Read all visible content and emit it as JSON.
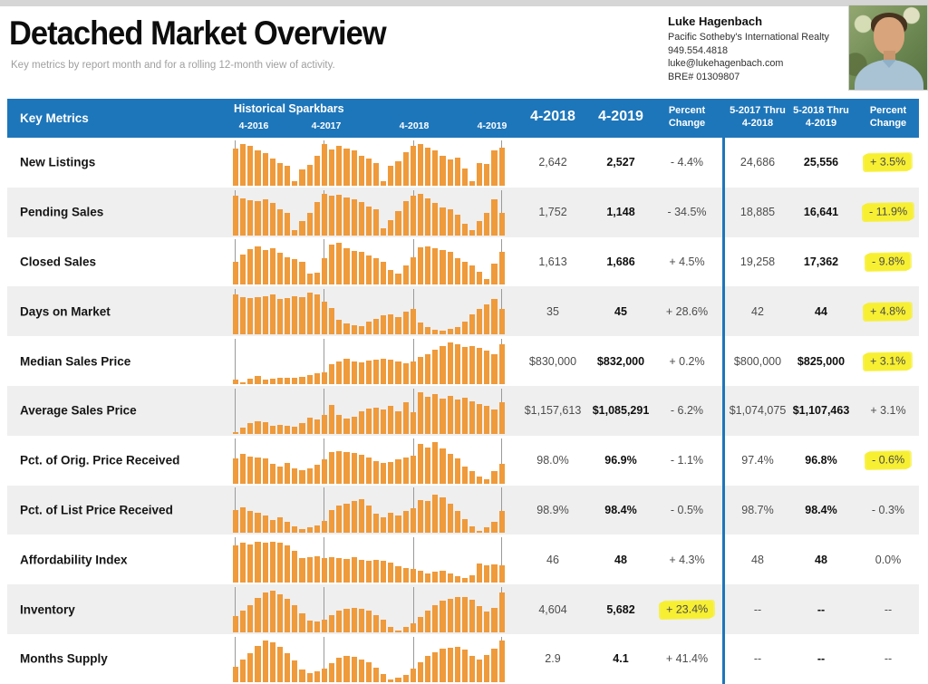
{
  "page": {
    "title": "Detached Market Overview",
    "subtitle": "Key metrics by report month and for a rolling 12-month view of activity."
  },
  "agent": {
    "name": "Luke Hagenbach",
    "company": "Pacific Sotheby's International Realty",
    "phone": "949.554.4818",
    "email": "luke@lukehagenbach.com",
    "license": "BRE# 01309807"
  },
  "colors": {
    "header_blue": "#1E76BA",
    "bar_orange": "#EF9A3B",
    "highlight_yellow": "#F7EF32",
    "row_stripe_gray": "#EFEFEF"
  },
  "table": {
    "header": {
      "key_metrics": "Key Metrics",
      "sparkbars_title": "Historical Sparkbars",
      "spark_years": [
        "4-2016",
        "4-2017",
        "4-2018",
        "4-2019"
      ],
      "month_prev": "4-2018",
      "month_curr": "4-2019",
      "pct_line1": "Percent",
      "pct_line2": "Change",
      "roll_prev_line1": "5-2017 Thru",
      "roll_prev_line2": "4-2018",
      "roll_curr_line1": "5-2018 Thru",
      "roll_curr_line2": "4-2019",
      "roll_pct_line1": "Percent",
      "roll_pct_line2": "Change"
    },
    "rows": [
      {
        "label": "New Listings",
        "m_prev": "2,642",
        "m_curr": "2,527",
        "m_pct": "- 4.4%",
        "m_pct_highlight": false,
        "r_prev": "24,686",
        "r_curr": "25,556",
        "r_pct": "+ 3.5%",
        "r_pct_highlight": true
      },
      {
        "label": "Pending Sales",
        "m_prev": "1,752",
        "m_curr": "1,148",
        "m_pct": "- 34.5%",
        "m_pct_highlight": false,
        "r_prev": "18,885",
        "r_curr": "16,641",
        "r_pct": "- 11.9%",
        "r_pct_highlight": true
      },
      {
        "label": "Closed Sales",
        "m_prev": "1,613",
        "m_curr": "1,686",
        "m_pct": "+ 4.5%",
        "m_pct_highlight": false,
        "r_prev": "19,258",
        "r_curr": "17,362",
        "r_pct": "- 9.8%",
        "r_pct_highlight": true
      },
      {
        "label": "Days on Market",
        "m_prev": "35",
        "m_curr": "45",
        "m_pct": "+ 28.6%",
        "m_pct_highlight": false,
        "r_prev": "42",
        "r_curr": "44",
        "r_pct": "+ 4.8%",
        "r_pct_highlight": true
      },
      {
        "label": "Median Sales Price",
        "m_prev": "$830,000",
        "m_curr": "$832,000",
        "m_pct": "+ 0.2%",
        "m_pct_highlight": false,
        "r_prev": "$800,000",
        "r_curr": "$825,000",
        "r_pct": "+ 3.1%",
        "r_pct_highlight": true
      },
      {
        "label": "Average Sales Price",
        "m_prev": "$1,157,613",
        "m_curr": "$1,085,291",
        "m_pct": "- 6.2%",
        "m_pct_highlight": false,
        "r_prev": "$1,074,075",
        "r_curr": "$1,107,463",
        "r_pct": "+ 3.1%",
        "r_pct_highlight": false
      },
      {
        "label": "Pct. of Orig. Price Received",
        "m_prev": "98.0%",
        "m_curr": "96.9%",
        "m_pct": "- 1.1%",
        "m_pct_highlight": false,
        "r_prev": "97.4%",
        "r_curr": "96.8%",
        "r_pct": "- 0.6%",
        "r_pct_highlight": true
      },
      {
        "label": "Pct. of List Price Received",
        "m_prev": "98.9%",
        "m_curr": "98.4%",
        "m_pct": "- 0.5%",
        "m_pct_highlight": false,
        "r_prev": "98.7%",
        "r_curr": "98.4%",
        "r_pct": "- 0.3%",
        "r_pct_highlight": false
      },
      {
        "label": "Affordability Index",
        "m_prev": "46",
        "m_curr": "48",
        "m_pct": "+ 4.3%",
        "m_pct_highlight": false,
        "r_prev": "48",
        "r_curr": "48",
        "r_pct": "0.0%",
        "r_pct_highlight": false
      },
      {
        "label": "Inventory",
        "m_prev": "4,604",
        "m_curr": "5,682",
        "m_pct": "+ 23.4%",
        "m_pct_highlight": true,
        "r_prev": "--",
        "r_curr": "--",
        "r_pct": "--",
        "r_pct_highlight": false
      },
      {
        "label": "Months Supply",
        "m_prev": "2.9",
        "m_curr": "4.1",
        "m_pct": "+ 41.4%",
        "m_pct_highlight": false,
        "r_prev": "--",
        "r_curr": "--",
        "r_pct": "--",
        "r_pct_highlight": false
      }
    ]
  },
  "chart_data": {
    "type": "bar",
    "title": "Historical Sparkbars",
    "x_start": "4-2016",
    "x_end": "4-2019",
    "points_per_series": 37,
    "note": "Monthly sparkbars from 4-2016 through 4-2019; values are relative bar heights (0-100) estimated from pixels, each series independently scaled.",
    "gridline_months": [
      "4-2016",
      "4-2017",
      "4-2018",
      "4-2019"
    ],
    "series": [
      {
        "name": "New Listings",
        "values": [
          90,
          100,
          95,
          85,
          78,
          65,
          55,
          48,
          10,
          40,
          50,
          72,
          100,
          88,
          95,
          90,
          85,
          72,
          65,
          55,
          10,
          48,
          58,
          80,
          95,
          100,
          92,
          85,
          72,
          62,
          68,
          42,
          10,
          55,
          52,
          85,
          92
        ]
      },
      {
        "name": "Pending Sales",
        "values": [
          95,
          90,
          85,
          82,
          86,
          78,
          62,
          55,
          12,
          35,
          55,
          80,
          100,
          95,
          98,
          92,
          88,
          80,
          70,
          62,
          18,
          38,
          58,
          82,
          95,
          100,
          90,
          78,
          68,
          62,
          50,
          28,
          12,
          35,
          55,
          88,
          55
        ]
      },
      {
        "name": "Closed Sales",
        "values": [
          55,
          72,
          85,
          92,
          82,
          86,
          75,
          65,
          60,
          55,
          25,
          28,
          62,
          95,
          100,
          88,
          80,
          78,
          70,
          62,
          55,
          35,
          25,
          45,
          65,
          90,
          92,
          88,
          82,
          78,
          62,
          55,
          45,
          30,
          12,
          50,
          78
        ]
      },
      {
        "name": "Days on Market",
        "values": [
          95,
          90,
          88,
          90,
          92,
          95,
          85,
          88,
          92,
          90,
          100,
          95,
          78,
          62,
          35,
          25,
          22,
          20,
          30,
          38,
          45,
          48,
          42,
          55,
          60,
          28,
          18,
          10,
          8,
          12,
          18,
          30,
          48,
          60,
          72,
          85,
          60
        ]
      },
      {
        "name": "Median Sales Price",
        "values": [
          10,
          4,
          12,
          20,
          10,
          12,
          15,
          16,
          15,
          18,
          22,
          25,
          28,
          48,
          55,
          60,
          55,
          52,
          56,
          58,
          60,
          58,
          54,
          50,
          55,
          65,
          72,
          82,
          92,
          100,
          95,
          90,
          92,
          88,
          80,
          72,
          95
        ]
      },
      {
        "name": "Average Sales Price",
        "values": [
          5,
          15,
          25,
          30,
          28,
          20,
          22,
          20,
          18,
          25,
          40,
          35,
          45,
          70,
          45,
          38,
          42,
          55,
          60,
          62,
          58,
          68,
          55,
          75,
          52,
          100,
          90,
          95,
          85,
          92,
          82,
          88,
          78,
          72,
          68,
          58,
          75
        ]
      },
      {
        "name": "Pct. of Orig. Price Received",
        "values": [
          60,
          72,
          65,
          62,
          60,
          48,
          42,
          50,
          38,
          32,
          38,
          45,
          58,
          75,
          78,
          76,
          74,
          70,
          62,
          55,
          50,
          52,
          58,
          62,
          68,
          95,
          88,
          100,
          85,
          72,
          60,
          42,
          30,
          18,
          10,
          30,
          48
        ]
      },
      {
        "name": "Pct. of List Price Received",
        "values": [
          55,
          60,
          52,
          48,
          42,
          30,
          38,
          25,
          15,
          8,
          12,
          18,
          28,
          55,
          65,
          70,
          75,
          80,
          65,
          45,
          38,
          48,
          42,
          52,
          58,
          78,
          75,
          92,
          85,
          70,
          52,
          32,
          15,
          5,
          12,
          25,
          52
        ]
      },
      {
        "name": "Affordability Index",
        "values": [
          90,
          95,
          92,
          98,
          96,
          97,
          95,
          90,
          75,
          58,
          60,
          62,
          58,
          60,
          58,
          57,
          60,
          55,
          52,
          55,
          52,
          48,
          40,
          35,
          32,
          28,
          22,
          25,
          28,
          22,
          15,
          10,
          18,
          45,
          42,
          44,
          42
        ]
      },
      {
        "name": "Inventory",
        "values": [
          40,
          52,
          65,
          82,
          95,
          100,
          92,
          80,
          65,
          45,
          28,
          25,
          30,
          42,
          52,
          56,
          58,
          57,
          52,
          42,
          30,
          12,
          5,
          12,
          22,
          38,
          52,
          65,
          75,
          80,
          84,
          85,
          78,
          62,
          50,
          58,
          95
        ]
      },
      {
        "name": "Months Supply",
        "values": [
          38,
          55,
          70,
          88,
          100,
          95,
          85,
          70,
          52,
          30,
          22,
          26,
          32,
          46,
          58,
          62,
          60,
          55,
          48,
          35,
          20,
          6,
          10,
          18,
          32,
          48,
          62,
          72,
          80,
          82,
          84,
          78,
          62,
          55,
          65,
          80,
          100
        ]
      }
    ]
  }
}
